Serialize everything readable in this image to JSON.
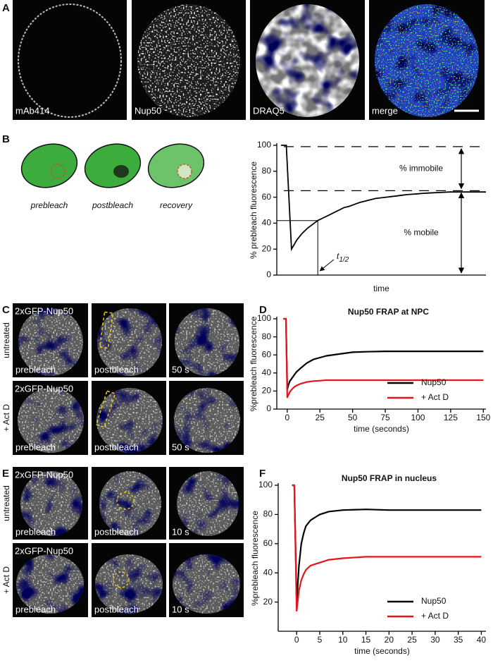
{
  "panels": [
    {
      "letter": "A",
      "image_labels": [
        "mAb414",
        "Nup50",
        "DRAQ5",
        "merge"
      ]
    },
    {
      "letter": "B",
      "schematic_labels": [
        "prebleach",
        "postbleach",
        "recovery"
      ]
    },
    {
      "letter": "C",
      "rows": [
        {
          "label": "untreated",
          "title": "2xGFP-Nup50",
          "image_labels": [
            "prebleach",
            "postbleach",
            "50 s"
          ]
        },
        {
          "label": "+ Act D",
          "title": "2xGFP-Nup50",
          "image_labels": [
            "prebleach",
            "postbleach",
            "50 s"
          ]
        }
      ]
    },
    {
      "letter": "D"
    },
    {
      "letter": "E",
      "rows": [
        {
          "label": "untreated",
          "title": "2xGFP-Nup50",
          "image_labels": [
            "prebleach",
            "postbleach",
            "10 s"
          ]
        },
        {
          "label": "+ Act D",
          "title": "2xGFP-Nup50",
          "image_labels": [
            "prebleach",
            "postbleach",
            "10 s"
          ]
        }
      ]
    },
    {
      "letter": "F"
    }
  ],
  "chart_data": [
    {
      "type": "line",
      "ylabel": "% prebleach fluorescence",
      "xlabel": "time",
      "color": "#000000",
      "ylim": [
        0,
        100
      ],
      "yticks": [
        0,
        20,
        40,
        60,
        80,
        100
      ],
      "values": [
        100,
        100,
        20,
        27,
        32,
        36,
        39,
        42,
        44,
        46,
        48,
        50,
        52,
        53,
        54.5,
        56,
        57,
        58,
        59,
        59.5,
        60,
        60.5,
        61,
        61.5,
        62,
        62.3,
        62.6,
        63,
        63.2,
        63.4,
        63.6,
        63.8,
        64,
        64,
        64,
        64,
        64,
        64,
        64,
        64
      ],
      "reference_lines": [
        99,
        65
      ],
      "t_half_level": 42,
      "annotations": {
        "immobile": "% immobile",
        "mobile": "% mobile",
        "t_half": {
          "symbol": "t",
          "subscript": "1/2"
        }
      }
    },
    {
      "type": "line",
      "title": "Nup50 FRAP at NPC",
      "ylabel": "%prebleach fluorescence",
      "xlabel": "time (seconds)",
      "xlim": [
        -8,
        152
      ],
      "xticks": [
        0,
        25,
        50,
        75,
        100,
        125,
        150
      ],
      "ylim": [
        0,
        100
      ],
      "yticks": [
        0,
        20,
        40,
        60,
        80,
        100
      ],
      "legend": "lower right",
      "x": [
        -3,
        -1,
        0,
        1,
        2,
        3,
        5,
        7,
        10,
        15,
        20,
        25,
        30,
        40,
        50,
        60,
        75,
        90,
        100,
        110,
        125,
        140,
        150
      ],
      "series": [
        {
          "name": "Nup50",
          "color": "#000000",
          "values": [
            100,
            100,
            22,
            27,
            31,
            33,
            37,
            41,
            45,
            51,
            55,
            57,
            59,
            61,
            63,
            63.5,
            64,
            64,
            64,
            64,
            64,
            64,
            64
          ]
        },
        {
          "name": "+ Act D",
          "color": "#e8141c",
          "values": [
            100,
            100,
            13,
            16,
            19,
            21,
            24,
            26,
            28,
            30,
            31,
            31.5,
            32,
            32,
            32,
            32,
            32,
            32,
            32,
            32,
            32,
            32,
            32
          ]
        }
      ]
    },
    {
      "type": "line",
      "title": "Nup50 FRAP in nucleus",
      "ylabel": "%prebleach fluorescence",
      "xlabel": "time (seconds)",
      "xlim": [
        -4,
        41
      ],
      "xticks": [
        0,
        5,
        10,
        15,
        20,
        25,
        30,
        35,
        40
      ],
      "ylim": [
        0,
        100
      ],
      "yticks": [
        20,
        40,
        60,
        80,
        100
      ],
      "legend": "lower right",
      "x": [
        -1,
        -0.5,
        0,
        0.5,
        1,
        1.5,
        2,
        3,
        4,
        5,
        7,
        10,
        15,
        20,
        25,
        30,
        35,
        40
      ],
      "series": [
        {
          "name": "Nup50",
          "color": "#000000",
          "values": [
            100,
            100,
            20,
            45,
            60,
            67,
            72,
            76,
            78,
            80,
            82,
            83,
            83.5,
            83,
            83,
            83,
            83,
            83
          ]
        },
        {
          "name": "+ Act D",
          "color": "#e8141c",
          "values": [
            100,
            100,
            14,
            28,
            35,
            39,
            42,
            45,
            46,
            47,
            49,
            50,
            51,
            51,
            51,
            51,
            51,
            51
          ]
        }
      ]
    }
  ]
}
